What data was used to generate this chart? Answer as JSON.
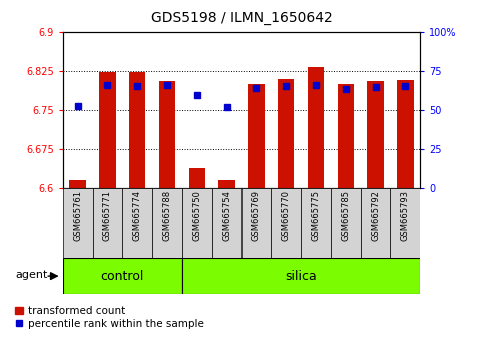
{
  "title": "GDS5198 / ILMN_1650642",
  "samples": [
    "GSM665761",
    "GSM665771",
    "GSM665774",
    "GSM665788",
    "GSM665750",
    "GSM665754",
    "GSM665769",
    "GSM665770",
    "GSM665775",
    "GSM665785",
    "GSM665792",
    "GSM665793"
  ],
  "red_values": [
    6.615,
    6.822,
    6.822,
    6.805,
    6.638,
    6.615,
    6.8,
    6.81,
    6.832,
    6.8,
    6.805,
    6.808
  ],
  "blue_values": [
    6.758,
    6.798,
    6.795,
    6.798,
    6.778,
    6.755,
    6.792,
    6.795,
    6.798,
    6.79,
    6.793,
    6.795
  ],
  "ylim_left": [
    6.6,
    6.9
  ],
  "ylim_right": [
    0,
    100
  ],
  "yticks_left": [
    6.6,
    6.675,
    6.75,
    6.825,
    6.9
  ],
  "yticks_right": [
    0,
    25,
    50,
    75,
    100
  ],
  "ytick_labels_left": [
    "6.6",
    "6.675",
    "6.75",
    "6.825",
    "6.9"
  ],
  "ytick_labels_right": [
    "0",
    "25",
    "50",
    "75",
    "100%"
  ],
  "ybase": 6.6,
  "control_label": "control",
  "silica_label": "silica",
  "agent_label": "agent",
  "legend_red": "transformed count",
  "legend_blue": "percentile rank within the sample",
  "bar_color": "#CC1100",
  "dot_color": "#0000CC",
  "panel_bg": "#d3d3d3",
  "group_bg": "#7CFC00",
  "n_control": 4,
  "n_silica": 8
}
